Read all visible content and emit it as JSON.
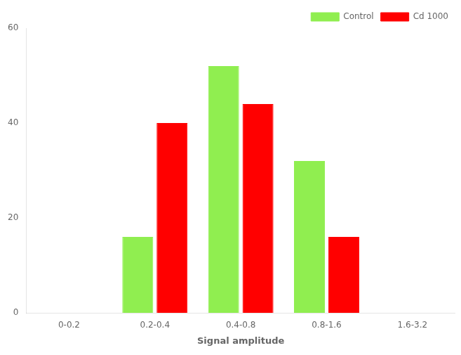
{
  "chart_data": {
    "type": "bar",
    "categories": [
      "0-0.2",
      "0.2-0.4",
      "0.4-0.8",
      "0.8-1.6",
      "1.6-3.2"
    ],
    "series": [
      {
        "name": "Control",
        "color": "#90EE50",
        "values": [
          0,
          16,
          52,
          32,
          0
        ]
      },
      {
        "name": "Cd 1000",
        "color": "#FF0000",
        "values": [
          0,
          40,
          44,
          16,
          0
        ]
      }
    ],
    "xlabel": "Signal amplitude",
    "ylim": [
      0,
      60
    ],
    "yticks": [
      0,
      20,
      40,
      60
    ],
    "grid": false,
    "legend": "upper right"
  }
}
